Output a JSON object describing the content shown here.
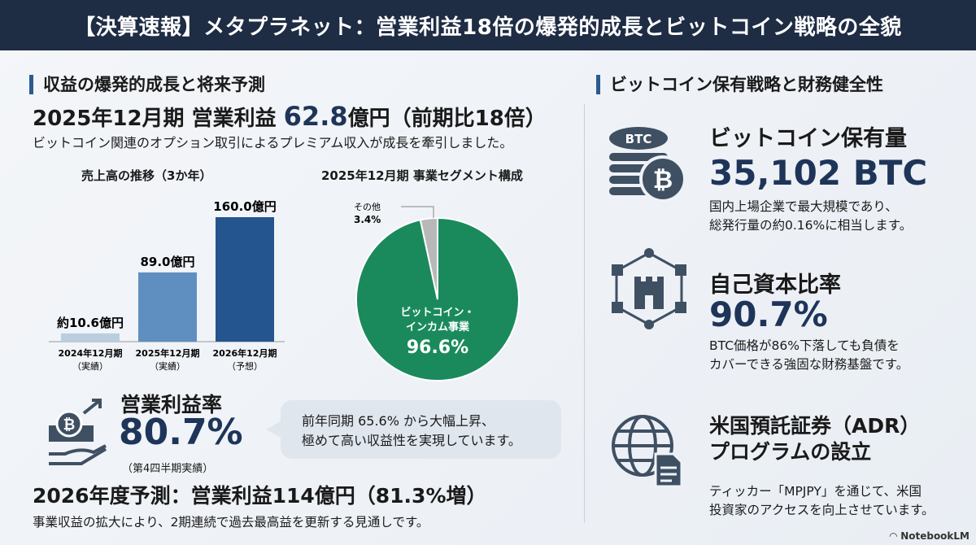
{
  "header": {
    "title": "【決算速報】メタプラネット：営業利益18倍の爆発的成長とビットコイン戦略の全貌"
  },
  "left": {
    "section_title": "収益の爆発的成長と将来予測",
    "headline_pre": "2025年12月期 営業利益 ",
    "headline_value": "62.8",
    "headline_post": "億円（前期比18倍）",
    "subtitle": "ビットコイン関連のオプション取引によるプレミアム収入が成長を牽引しました。",
    "margin": {
      "label": "営業利益率",
      "value": "80.7%",
      "note": "（第4四半期実績）",
      "callout_line1": "前年同期 65.6% から大幅上昇、",
      "callout_line2": "極めて高い収益性を実現しています。"
    },
    "forecast": {
      "title": "2026年度予測：営業利益114億円（81.3%増）",
      "text": "事業収益の拡大により、2期連続で過去最高益を更新する見通しです。"
    }
  },
  "chart_data": [
    {
      "type": "bar",
      "title": "売上高の推移（3か年）",
      "categories": [
        "2024年12月期",
        "2025年12月期",
        "2026年12月期"
      ],
      "category_notes": [
        "（実績）",
        "（実績）",
        "（予想）"
      ],
      "values": [
        10.6,
        89.0,
        160.0
      ],
      "data_labels": [
        "約10.6億円",
        "89.0億円",
        "160.0億円"
      ],
      "unit": "億円",
      "colors": [
        "#b9cfe0",
        "#5f8fc0",
        "#24558e"
      ]
    },
    {
      "type": "pie",
      "title": "2025年12月期 事業セグメント構成",
      "slices": [
        {
          "label": "ビットコイン・インカム事業",
          "label_line1": "ビットコイン・",
          "label_line2": "インカム事業",
          "value": 96.6,
          "display": "96.6%",
          "color": "#1a8a5c"
        },
        {
          "label": "その他",
          "value": 3.4,
          "display": "3.4%",
          "color": "#b8b8b8"
        }
      ]
    }
  ],
  "right": {
    "section_title": "ビットコイン保有戦略と財務健全性",
    "items": [
      {
        "title": "ビットコイン保有量",
        "value": "35,102 BTC",
        "desc1": "国内上場企業で最大規模であり、",
        "desc2": "総発行量の約0.16%に相当します。",
        "icon": "btc-coins-icon",
        "icon_text": "BTC"
      },
      {
        "title": "自己資本比率",
        "value": "90.7%",
        "desc1": "BTC価格が86%下落しても負債を",
        "desc2": "カバーできる強固な財務基盤です。",
        "icon": "fortress-network-icon"
      },
      {
        "title": "米国預託証券（ADR）",
        "title2": "プログラムの設立",
        "desc1": "ティッカー「MPJPY」を通じて、米国",
        "desc2": "投資家のアクセスを向上させています。",
        "icon": "globe-document-icon"
      }
    ]
  },
  "footer": {
    "brand": "NotebookLM"
  }
}
